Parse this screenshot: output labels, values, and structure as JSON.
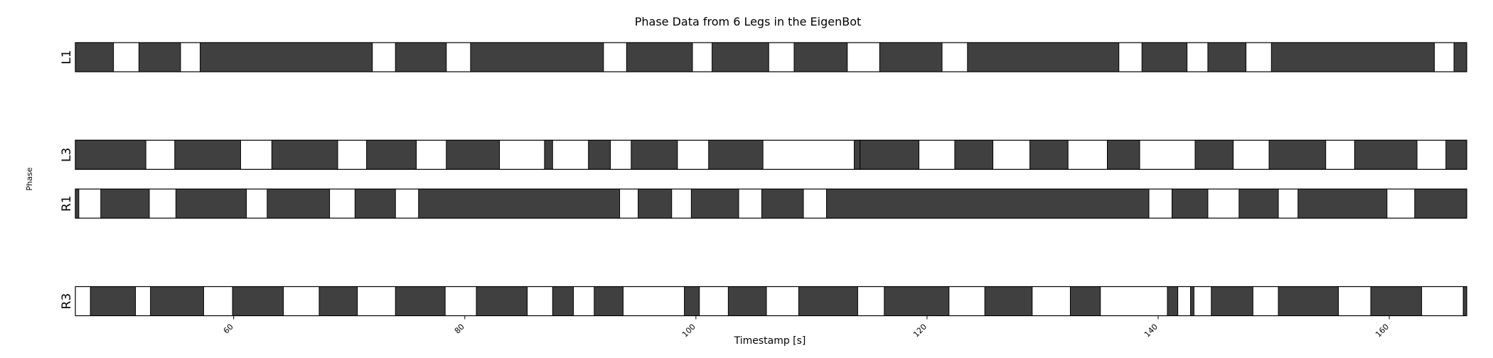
{
  "chart_data": {
    "type": "broken_barh",
    "title": "Phase Data from 6 Legs in the EigenBot",
    "xlabel": "Timestamp [s]",
    "ylabel": "Phase",
    "xlim": [
      46.3,
      166.7
    ],
    "xticks": [
      60,
      80,
      100,
      120,
      140,
      160
    ],
    "colors": {
      "stance": "#404040",
      "swing": "#ffffff",
      "edge": "#000000"
    },
    "legs": [
      {
        "name": "L1",
        "band": 0,
        "stance": [
          [
            46.3,
            49.6
          ],
          [
            51.8,
            55.4
          ],
          [
            57.1,
            72.0
          ],
          [
            74.0,
            78.4
          ],
          [
            80.5,
            92.0
          ],
          [
            94.0,
            99.7
          ],
          [
            101.4,
            106.3
          ],
          [
            108.5,
            113.1
          ],
          [
            115.9,
            121.3
          ],
          [
            123.5,
            136.6
          ],
          [
            138.6,
            142.5
          ],
          [
            144.3,
            147.6
          ],
          [
            149.8,
            163.9
          ],
          [
            165.6,
            166.7
          ]
        ]
      },
      {
        "name": "L3",
        "band": 2,
        "stance": [
          [
            46.3,
            52.4
          ],
          [
            54.9,
            60.6
          ],
          [
            63.3,
            69.0
          ],
          [
            71.5,
            75.8
          ],
          [
            78.4,
            83.0
          ],
          [
            86.9,
            87.6
          ],
          [
            90.7,
            92.6
          ],
          [
            94.4,
            98.4
          ],
          [
            101.1,
            105.8
          ],
          [
            113.7,
            114.2
          ],
          [
            114.2,
            119.3
          ],
          [
            122.4,
            125.7
          ],
          [
            128.9,
            132.2
          ],
          [
            135.6,
            138.4
          ],
          [
            143.2,
            146.5
          ],
          [
            149.6,
            154.5
          ],
          [
            157.0,
            162.4
          ],
          [
            164.9,
            166.7
          ]
        ]
      },
      {
        "name": "R1",
        "band": 3,
        "stance": [
          [
            46.3,
            46.6
          ],
          [
            48.5,
            52.7
          ],
          [
            55.0,
            61.1
          ],
          [
            62.9,
            68.3
          ],
          [
            70.5,
            74.0
          ],
          [
            76.0,
            93.4
          ],
          [
            95.0,
            97.9
          ],
          [
            99.6,
            103.7
          ],
          [
            105.7,
            109.3
          ],
          [
            111.3,
            139.2
          ],
          [
            141.2,
            144.3
          ],
          [
            147.0,
            150.4
          ],
          [
            152.1,
            159.8
          ],
          [
            162.2,
            166.7
          ]
        ]
      },
      {
        "name": "R3",
        "band": 5,
        "stance": [
          [
            47.6,
            51.5
          ],
          [
            52.8,
            57.4
          ],
          [
            59.9,
            64.3
          ],
          [
            67.4,
            70.7
          ],
          [
            74.0,
            78.3
          ],
          [
            81.0,
            85.4
          ],
          [
            87.6,
            89.4
          ],
          [
            91.2,
            93.7
          ],
          [
            99.0,
            100.3
          ],
          [
            102.8,
            106.1
          ],
          [
            108.9,
            114.0
          ],
          [
            116.3,
            121.9
          ],
          [
            125.0,
            129.1
          ],
          [
            132.4,
            135.0
          ],
          [
            140.8,
            141.7
          ],
          [
            142.8,
            143.1
          ],
          [
            144.6,
            148.2
          ],
          [
            150.4,
            155.6
          ],
          [
            158.4,
            162.8
          ],
          [
            166.4,
            166.7
          ]
        ]
      }
    ]
  }
}
